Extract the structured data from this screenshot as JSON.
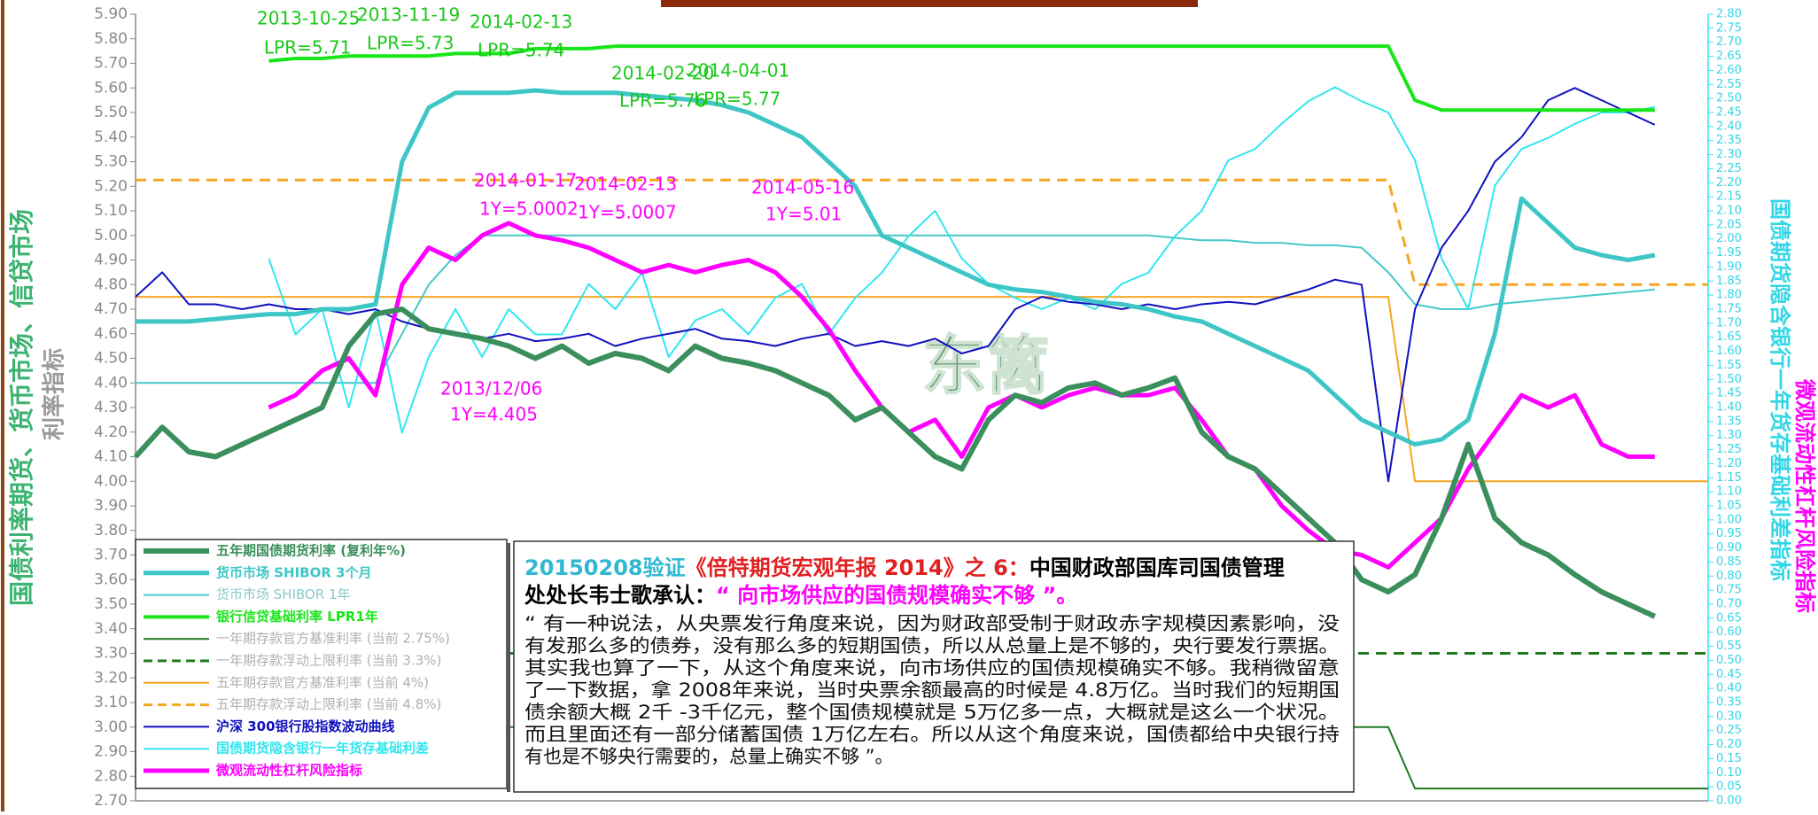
{
  "chart_data": {
    "type": "line",
    "ylim": [
      2.7,
      5.9
    ],
    "yticks": [
      {
        "value": 2.7,
        "label": "2.70"
      },
      {
        "value": 2.8,
        "label": "2.80"
      },
      {
        "value": 2.9,
        "label": "2.90"
      },
      {
        "value": 3.0,
        "label": "3.00"
      },
      {
        "value": 3.1,
        "label": "3.10"
      },
      {
        "value": 3.2,
        "label": "3.20"
      },
      {
        "value": 3.3,
        "label": "3.30"
      },
      {
        "value": 3.4,
        "label": "3.40"
      },
      {
        "value": 3.5,
        "label": "3.50"
      },
      {
        "value": 3.6,
        "label": "3.60"
      },
      {
        "value": 3.7,
        "label": "3.70"
      },
      {
        "value": 3.8,
        "label": "3.80"
      },
      {
        "value": 3.9,
        "label": "3.90"
      },
      {
        "value": 4.0,
        "label": "4.00"
      },
      {
        "value": 4.1,
        "label": "4.10"
      },
      {
        "value": 4.2,
        "label": "4.20"
      },
      {
        "value": 4.3,
        "label": "4.30"
      },
      {
        "value": 4.4,
        "label": "4.40"
      },
      {
        "value": 4.5,
        "label": "4.50"
      },
      {
        "value": 4.6,
        "label": "4.60"
      },
      {
        "value": 4.7,
        "label": "4.70"
      },
      {
        "value": 4.8,
        "label": "4.80"
      },
      {
        "value": 4.9,
        "label": "4.90"
      },
      {
        "value": 5.0,
        "label": "5.00"
      },
      {
        "value": 5.1,
        "label": "5.10"
      },
      {
        "value": 5.2,
        "label": "5.20"
      },
      {
        "value": 5.3,
        "label": "5.30"
      },
      {
        "value": 5.4,
        "label": "5.40"
      },
      {
        "value": 5.5,
        "label": "5.50"
      },
      {
        "value": 5.6,
        "label": "5.60"
      },
      {
        "value": 5.7,
        "label": "5.70"
      },
      {
        "value": 5.8,
        "label": "5.80"
      },
      {
        "value": 5.9,
        "label": "5.90"
      }
    ],
    "y2lim": [
      0,
      2.8
    ],
    "y2ticks": [
      {
        "value": 0,
        "label": "0.00"
      },
      0.05,
      {
        "value": 0.1,
        "label": "0.10"
      },
      0.15,
      {
        "value": 0.2,
        "label": "0.20"
      },
      0.25,
      {
        "value": 0.3,
        "label": "0.30"
      },
      0.35,
      {
        "value": 0.4,
        "label": "0.40"
      },
      0.45,
      {
        "value": 0.5,
        "label": "0.50"
      },
      0.55,
      {
        "value": 0.6,
        "label": "0.60"
      },
      0.65,
      {
        "value": 0.7,
        "label": "0.70"
      },
      0.75,
      {
        "value": 0.8,
        "label": "0.80"
      },
      0.85,
      {
        "value": 0.9,
        "label": "0.90"
      },
      0.95,
      {
        "value": 1,
        "label": "1.00"
      },
      1.05,
      {
        "value": 1.1,
        "label": "1.10"
      },
      1.15,
      {
        "value": 1.2,
        "label": "1.20"
      },
      1.25,
      {
        "value": 1.3,
        "label": "1.30"
      },
      1.35,
      {
        "value": 1.4,
        "label": "1.40"
      },
      1.45,
      {
        "value": 1.5,
        "label": "1.50"
      },
      1.55,
      {
        "value": 1.6,
        "label": "1.60"
      },
      1.65,
      {
        "value": 1.7,
        "label": "1.70"
      },
      1.75,
      {
        "value": 1.8,
        "label": "1.80"
      },
      1.85,
      {
        "value": 1.9,
        "label": "1.90"
      },
      1.95,
      {
        "value": 2,
        "label": "2.00"
      },
      2.05,
      {
        "value": 2.1,
        "label": "2.10"
      },
      2.15,
      {
        "value": 2.2,
        "label": "2.20"
      },
      2.25,
      {
        "value": 2.3,
        "label": "2.30"
      },
      2.35,
      {
        "value": 2.4,
        "label": "2.40"
      },
      2.45,
      {
        "value": 2.5,
        "label": "2.50"
      },
      2.55,
      {
        "value": 2.6,
        "label": "2.60"
      },
      2.65,
      {
        "value": 2.7,
        "label": "2.70"
      },
      2.75,
      {
        "value": 2.8,
        "label": "2.80"
      }
    ],
    "y_axis_labels": [
      "国债利率期货、货币市场、信贷市场",
      "利率指标"
    ],
    "y2_axis_labels": [
      "国债期货隐含银行一年货存基础利差指标",
      "微观流动性杠杆风险指标"
    ],
    "series": [
      {
        "name": "五年期国债期货利率 (复利年%)",
        "color": "#3a8f5c",
        "width": 6,
        "values": [
          4.1,
          4.22,
          4.12,
          4.1,
          4.15,
          4.2,
          4.25,
          4.3,
          4.55,
          4.68,
          4.7,
          4.62,
          4.6,
          4.58,
          4.55,
          4.5,
          4.55,
          4.48,
          4.52,
          4.5,
          4.45,
          4.55,
          4.5,
          4.48,
          4.45,
          4.4,
          4.35,
          4.25,
          4.3,
          4.2,
          4.1,
          4.05,
          4.25,
          4.35,
          4.32,
          4.38,
          4.4,
          4.35,
          4.38,
          4.42,
          4.2,
          4.1,
          4.05,
          3.95,
          3.85,
          3.75,
          3.6,
          3.55,
          3.62,
          3.85,
          4.15,
          3.85,
          3.75,
          3.7,
          3.62,
          3.55,
          3.5,
          3.45,
          null,
          null
        ]
      },
      {
        "name": "货币市场 SHIBOR  3个月",
        "color": "#3ec6c6",
        "width": 5,
        "values": [
          4.65,
          4.65,
          4.65,
          4.66,
          4.67,
          4.68,
          4.68,
          4.7,
          4.7,
          4.72,
          5.3,
          5.52,
          5.58,
          5.58,
          5.58,
          5.59,
          5.58,
          5.58,
          5.58,
          5.57,
          5.56,
          5.55,
          5.53,
          5.5,
          5.45,
          5.4,
          5.3,
          5.2,
          5.0,
          4.95,
          4.9,
          4.85,
          4.8,
          4.78,
          4.77,
          4.75,
          4.73,
          4.72,
          4.7,
          4.67,
          4.65,
          4.6,
          4.55,
          4.5,
          4.45,
          4.35,
          4.25,
          4.2,
          4.15,
          4.17,
          4.25,
          4.6,
          5.15,
          5.05,
          4.95,
          4.92,
          4.9,
          4.92,
          null,
          null
        ]
      },
      {
        "name": "货币市场 SHIBOR  1年",
        "color": "#46c8c8",
        "label_color": "#8ac8c8",
        "width": 2,
        "values": [
          4.4,
          4.4,
          4.4,
          4.4,
          4.4,
          4.4,
          4.4,
          4.4,
          4.4,
          4.4,
          4.6,
          4.8,
          4.92,
          5.0,
          5.0,
          5.0,
          5.0,
          5.0,
          5.0,
          5.0,
          5.0,
          5.0,
          5.0,
          5.0,
          5.0,
          5.0,
          5.0,
          5.0,
          5.0,
          5.0,
          5.0,
          5.0,
          5.0,
          5.0,
          5.0,
          5.0,
          5.0,
          5.0,
          5.0,
          4.99,
          4.98,
          4.98,
          4.97,
          4.97,
          4.96,
          4.96,
          4.95,
          4.85,
          4.72,
          4.7,
          4.7,
          4.72,
          4.73,
          4.74,
          4.75,
          4.76,
          4.77,
          4.78,
          null,
          null
        ]
      },
      {
        "name": "银行信贷基础利率 LPR1年",
        "color": "#19e619",
        "width": 4,
        "values": [
          null,
          null,
          null,
          null,
          null,
          5.71,
          5.72,
          5.72,
          5.73,
          5.73,
          5.73,
          5.73,
          5.74,
          5.74,
          5.74,
          5.76,
          5.76,
          5.76,
          5.77,
          5.77,
          5.77,
          5.77,
          5.77,
          5.77,
          5.77,
          5.77,
          5.77,
          5.77,
          5.77,
          5.77,
          5.77,
          5.77,
          5.77,
          5.77,
          5.77,
          5.77,
          5.77,
          5.77,
          5.77,
          5.77,
          5.77,
          5.77,
          5.77,
          5.77,
          5.77,
          5.77,
          5.77,
          5.77,
          5.55,
          5.51,
          5.51,
          5.51,
          5.51,
          5.51,
          5.51,
          5.51,
          5.51,
          5.51,
          null,
          null
        ]
      },
      {
        "name": "一年期存款官方基准利率 (当前 2.75%)",
        "color": "#1f7a1f",
        "label_color": "#b0b0b0",
        "width": 2,
        "values": [
          3.0,
          3.0,
          3.0,
          3.0,
          3.0,
          3.0,
          3.0,
          3.0,
          3.0,
          3.0,
          3.0,
          3.0,
          3.0,
          3.0,
          3.0,
          3.0,
          3.0,
          3.0,
          3.0,
          3.0,
          3.0,
          3.0,
          3.0,
          3.0,
          3.0,
          3.0,
          3.0,
          3.0,
          3.0,
          3.0,
          3.0,
          3.0,
          3.0,
          3.0,
          3.0,
          3.0,
          3.0,
          3.0,
          3.0,
          3.0,
          3.0,
          3.0,
          3.0,
          3.0,
          3.0,
          3.0,
          3.0,
          3.0,
          2.75,
          2.75,
          2.75,
          2.75,
          2.75,
          2.75,
          2.75,
          2.75,
          2.75,
          2.75,
          2.75,
          2.75
        ]
      },
      {
        "name": "一年期存款浮动上限利率 (当前 3.3%)",
        "color": "#1f7a1f",
        "label_color": "#b0b0b0",
        "width": 3,
        "dash": true,
        "values": [
          3.3,
          3.3,
          3.3,
          3.3,
          3.3,
          3.3,
          3.3,
          3.3,
          3.3,
          3.3,
          3.3,
          3.3,
          3.3,
          3.3,
          3.3,
          3.3,
          3.3,
          3.3,
          3.3,
          3.3,
          3.3,
          3.3,
          3.3,
          3.3,
          3.3,
          3.3,
          3.3,
          3.3,
          3.3,
          3.3,
          3.3,
          3.3,
          3.3,
          3.3,
          3.3,
          3.3,
          3.3,
          3.3,
          3.3,
          3.3,
          3.3,
          3.3,
          3.3,
          3.3,
          3.3,
          3.3,
          3.3,
          3.3,
          3.3,
          3.3,
          3.3,
          3.3,
          3.3,
          3.3,
          3.3,
          3.3,
          3.3,
          3.3,
          3.3,
          3.3
        ]
      },
      {
        "name": "五年期存款官方基准利率 (当前 4%)",
        "color": "#f5a623",
        "label_color": "#b0b0b0",
        "width": 2,
        "values": [
          4.75,
          4.75,
          4.75,
          4.75,
          4.75,
          4.75,
          4.75,
          4.75,
          4.75,
          4.75,
          4.75,
          4.75,
          4.75,
          4.75,
          4.75,
          4.75,
          4.75,
          4.75,
          4.75,
          4.75,
          4.75,
          4.75,
          4.75,
          4.75,
          4.75,
          4.75,
          4.75,
          4.75,
          4.75,
          4.75,
          4.75,
          4.75,
          4.75,
          4.75,
          4.75,
          4.75,
          4.75,
          4.75,
          4.75,
          4.75,
          4.75,
          4.75,
          4.75,
          4.75,
          4.75,
          4.75,
          4.75,
          4.75,
          4.0,
          4.0,
          4.0,
          4.0,
          4.0,
          4.0,
          4.0,
          4.0,
          4.0,
          4.0,
          4.0,
          4.0
        ]
      },
      {
        "name": "五年期存款浮动上限利率 (当前 4.8%)",
        "color": "#f5a623",
        "label_color": "#b0b0b0",
        "width": 3,
        "dash": true,
        "values": [
          5.225,
          5.225,
          5.225,
          5.225,
          5.225,
          5.225,
          5.225,
          5.225,
          5.225,
          5.225,
          5.225,
          5.225,
          5.225,
          5.225,
          5.225,
          5.225,
          5.225,
          5.225,
          5.225,
          5.225,
          5.225,
          5.225,
          5.225,
          5.225,
          5.225,
          5.225,
          5.225,
          5.225,
          5.225,
          5.225,
          5.225,
          5.225,
          5.225,
          5.225,
          5.225,
          5.225,
          5.225,
          5.225,
          5.225,
          5.225,
          5.225,
          5.225,
          5.225,
          5.225,
          5.225,
          5.225,
          5.225,
          5.225,
          4.8,
          4.8,
          4.8,
          4.8,
          4.8,
          4.8,
          4.8,
          4.8,
          4.8,
          4.8,
          4.8,
          4.8
        ]
      },
      {
        "name": "沪深 300银行股指数波动曲线",
        "color": "#1010c0",
        "width": 2,
        "values": [
          4.75,
          4.85,
          4.72,
          4.72,
          4.7,
          4.72,
          4.7,
          4.7,
          4.68,
          4.7,
          4.65,
          4.62,
          4.6,
          4.58,
          4.6,
          4.57,
          4.58,
          4.6,
          4.55,
          4.58,
          4.6,
          4.62,
          4.58,
          4.57,
          4.55,
          4.58,
          4.6,
          4.55,
          4.57,
          4.55,
          4.58,
          4.52,
          4.55,
          4.7,
          4.75,
          4.73,
          4.72,
          4.7,
          4.72,
          4.7,
          4.72,
          4.73,
          4.72,
          4.75,
          4.78,
          4.82,
          4.8,
          4.0,
          4.7,
          4.95,
          5.1,
          5.3,
          5.4,
          5.55,
          5.6,
          5.55,
          5.5,
          5.45,
          null,
          null
        ]
      },
      {
        "name": "国债期货隐含银行一年货存基础利差",
        "color": "#33e6f0",
        "width": 2,
        "axis": "y2",
        "values": [
          null,
          null,
          null,
          null,
          null,
          1.93,
          1.66,
          1.75,
          1.4,
          1.75,
          1.31,
          1.58,
          1.75,
          1.58,
          1.75,
          1.66,
          1.66,
          1.84,
          1.75,
          1.88,
          1.58,
          1.71,
          1.75,
          1.66,
          1.79,
          1.84,
          1.66,
          1.79,
          1.88,
          2.01,
          2.1,
          1.93,
          1.84,
          1.79,
          1.75,
          1.79,
          1.75,
          1.84,
          1.88,
          2.01,
          2.1,
          2.28,
          2.32,
          2.41,
          2.49,
          2.54,
          2.49,
          2.45,
          2.28,
          1.93,
          1.75,
          2.19,
          2.32,
          2.36,
          2.41,
          2.45,
          2.45,
          2.47,
          null,
          null
        ]
      },
      {
        "name": "微观流动性杠杆风险指标",
        "color": "#ff00ff",
        "width": 5,
        "values": [
          null,
          null,
          null,
          null,
          null,
          4.3,
          4.35,
          4.45,
          4.5,
          4.35,
          4.8,
          4.95,
          4.9,
          5.0,
          5.05,
          5.0,
          4.98,
          4.95,
          4.9,
          4.85,
          4.88,
          4.85,
          4.88,
          4.9,
          4.85,
          4.75,
          4.62,
          4.45,
          4.3,
          4.2,
          4.25,
          4.1,
          4.3,
          4.35,
          4.3,
          4.35,
          4.38,
          4.35,
          4.35,
          4.38,
          4.25,
          4.1,
          4.05,
          3.9,
          3.8,
          3.72,
          3.7,
          3.65,
          3.75,
          3.85,
          4.05,
          4.2,
          4.35,
          4.3,
          4.35,
          4.15,
          4.1,
          4.1,
          null,
          null
        ]
      }
    ],
    "annotations": [
      {
        "text": "2013-10-25",
        "color": "#19c819"
      },
      {
        "text": "LPR=5.71",
        "color": "#19c819"
      },
      {
        "text": "2013-11-19",
        "color": "#19c819"
      },
      {
        "text": "LPR=5.73",
        "color": "#19c819"
      },
      {
        "text": "2014-02-13",
        "color": "#19c819"
      },
      {
        "text": "LPR=5.74",
        "color": "#19c819"
      },
      {
        "text": "2014-02-20",
        "color": "#19c819"
      },
      {
        "text": "LPR=5.76",
        "color": "#19c819"
      },
      {
        "text": "2014-04-01",
        "color": "#19c819"
      },
      {
        "text": "LPR=5.77",
        "color": "#19c819"
      },
      {
        "text": "2014-01-17",
        "color": "#ff00ff"
      },
      {
        "text": "1Y=5.0002",
        "color": "#ff00ff"
      },
      {
        "text": "2014-02-13",
        "color": "#ff00ff"
      },
      {
        "text": "1Y=5.0007",
        "color": "#ff00ff"
      },
      {
        "text": "2014-05-16",
        "color": "#ff00ff"
      },
      {
        "text": "1Y=5.01",
        "color": "#ff00ff"
      },
      {
        "text": "2013/12/06",
        "color": "#ff00ff"
      },
      {
        "text": "1Y=4.405",
        "color": "#ff00ff"
      }
    ],
    "watermark": "东篱",
    "text_box": {
      "heading": [
        {
          "text": "20150208验证",
          "color": "#30b8d0"
        },
        {
          "text": "《倍特期货宏观年报  2014》之 6：",
          "color": "#e02020"
        },
        {
          "text": "中国财政部国库司国债管理",
          "color": "#000000"
        }
      ],
      "subheading": [
        {
          "text": "处处长韦士歌承认：",
          "color": "#000000"
        },
        {
          "text": "“ 向市场供应的国债规模确实不够 ”。",
          "color": "#ff00ff"
        }
      ],
      "lines": [
        "“ 有一种说法，从央票发行角度来说，因为财政部受制于财政赤字规模因素影响，没",
        "有发那么多的债券，没有那么多的短期国债，所以从总量上是不够的，央行要发行票据。",
        "  其实我也算了一下，从这个角度来说，向市场供应的国债规模确实不够。我稍微留意",
        "了一下数据，拿  2008年来说，当时央票余额最高的时候是  4.8万亿。当时我们的短期国",
        "债余额大概  2千 -3千亿元，整个国债规模就是  5万亿多一点，大概就是这么一个状况。",
        "而且里面还有一部分储蓄国债  1万亿左右。所以从这个角度来说，国债都给中央银行持",
        "有也是不够央行需要的，总量上确实不够 ”。"
      ]
    }
  }
}
